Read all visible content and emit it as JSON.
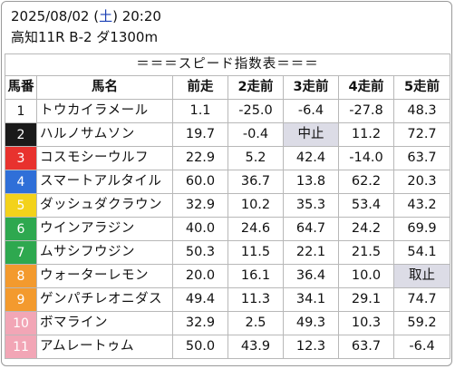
{
  "header": {
    "date_pre": "2025/08/02 (",
    "weekday": "土",
    "date_post": ") 20:20",
    "race": "高知11R B-2 ダ1300m"
  },
  "table": {
    "title": "＝＝＝スピード指数表＝＝＝",
    "columns": [
      "馬番",
      "馬名",
      "前走",
      "2走前",
      "3走前",
      "4走前",
      "5走前"
    ],
    "rows": [
      {
        "num": "1",
        "name": "トウカイラメール",
        "v": [
          "1.1",
          "-25.0",
          "-6.4",
          "-27.8",
          "48.3"
        ],
        "bg": "#ffffff",
        "fg": "#111111"
      },
      {
        "num": "2",
        "name": "ハルノサムソン",
        "v": [
          "19.7",
          "-0.4",
          "中止",
          "11.2",
          "72.7"
        ],
        "bg": "#1a1a1a",
        "fg": "#ffffff"
      },
      {
        "num": "3",
        "name": "コスモシーウルフ",
        "v": [
          "22.9",
          "5.2",
          "42.4",
          "-14.0",
          "63.7"
        ],
        "bg": "#e8322e",
        "fg": "#ffffff"
      },
      {
        "num": "4",
        "name": "スマートアルタイル",
        "v": [
          "60.0",
          "36.7",
          "13.8",
          "62.2",
          "20.3"
        ],
        "bg": "#2f6fd8",
        "fg": "#ffffff"
      },
      {
        "num": "5",
        "name": "ダッシュダクラウン",
        "v": [
          "32.9",
          "10.2",
          "35.3",
          "53.4",
          "43.2"
        ],
        "bg": "#f3d21b",
        "fg": "#ffffff"
      },
      {
        "num": "6",
        "name": "ウインアラジン",
        "v": [
          "40.0",
          "24.6",
          "64.7",
          "24.2",
          "69.9"
        ],
        "bg": "#2ea84f",
        "fg": "#ffffff"
      },
      {
        "num": "7",
        "name": "ムサシフウジン",
        "v": [
          "50.3",
          "11.5",
          "22.1",
          "21.5",
          "54.1"
        ],
        "bg": "#2ea84f",
        "fg": "#ffffff"
      },
      {
        "num": "8",
        "name": "ウォーターレモン",
        "v": [
          "20.0",
          "16.1",
          "36.4",
          "10.0",
          "取止"
        ],
        "bg": "#f39a2e",
        "fg": "#ffffff"
      },
      {
        "num": "9",
        "name": "ゲンパチレオニダス",
        "v": [
          "49.4",
          "11.3",
          "34.1",
          "29.1",
          "74.7"
        ],
        "bg": "#f39a2e",
        "fg": "#ffffff"
      },
      {
        "num": "10",
        "name": "ボマライン",
        "v": [
          "32.9",
          "2.5",
          "49.3",
          "10.3",
          "59.2"
        ],
        "bg": "#f2a6b6",
        "fg": "#ffffff"
      },
      {
        "num": "11",
        "name": "アムレートゥム",
        "v": [
          "50.0",
          "43.9",
          "12.3",
          "63.7",
          "-6.4"
        ],
        "bg": "#f2a6b6",
        "fg": "#ffffff"
      }
    ],
    "muted_values": [
      "中止",
      "取止"
    ]
  }
}
